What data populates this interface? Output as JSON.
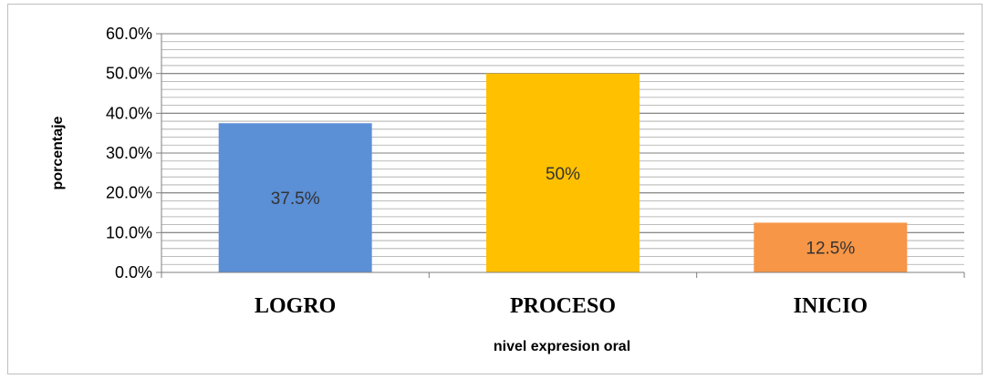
{
  "chart_data": {
    "type": "bar",
    "categories": [
      "LOGRO",
      "PROCESO",
      "INICIO"
    ],
    "values": [
      37.5,
      50,
      12.5
    ],
    "data_labels": [
      "37.5%",
      "50%",
      "12.5%"
    ],
    "colors": [
      "#5b8fd6",
      "#ffc000",
      "#f79646"
    ],
    "xlabel": "nivel expresion oral",
    "ylabel": "porcentaje",
    "ylim": [
      0,
      60
    ],
    "yticks": [
      0,
      10,
      20,
      30,
      40,
      50,
      60
    ],
    "ytick_labels": [
      "0.0%",
      "10.0%",
      "20.0%",
      "30.0%",
      "40.0%",
      "50.0%",
      "60.0%"
    ],
    "grid": true,
    "minor_step": 2
  }
}
